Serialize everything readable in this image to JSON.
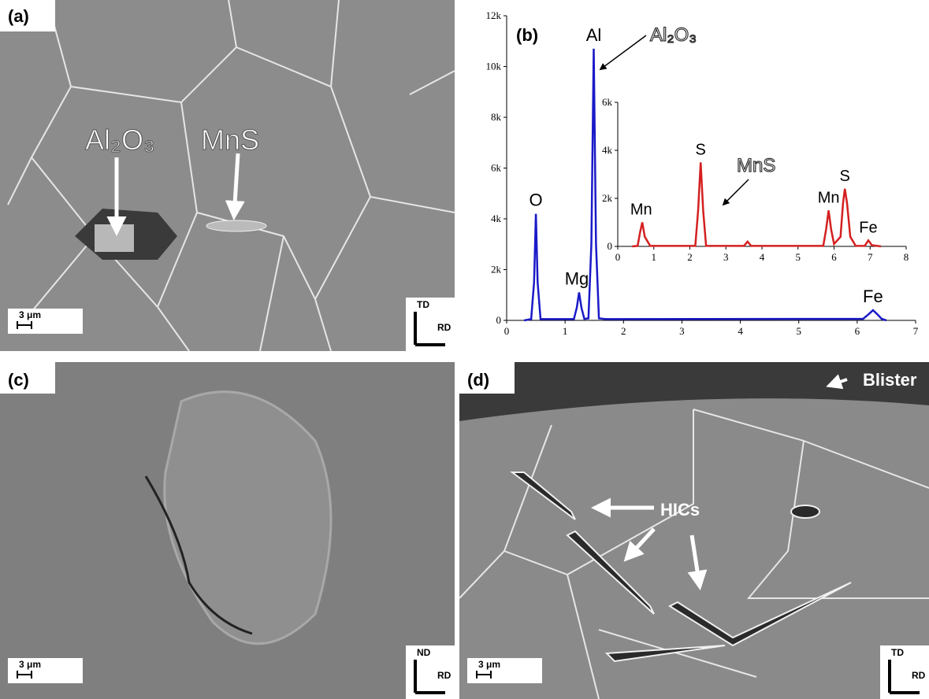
{
  "panels": {
    "a": {
      "label": "(a)",
      "callouts": [
        "Al₂O₃",
        "MnS"
      ],
      "scale": "3 μm",
      "axis_up": "TD",
      "axis_right": "RD"
    },
    "c": {
      "label": "(c)",
      "scale": "3 μm",
      "axis_up": "ND",
      "axis_right": "RD"
    },
    "d": {
      "label": "(d)",
      "callouts": [
        "Blister",
        "HICs"
      ],
      "scale": "3 μm",
      "axis_up": "TD",
      "axis_right": "RD"
    }
  },
  "chart_data": [
    {
      "type": "line",
      "label": "(b)",
      "annotations": [
        "Al₂O₃",
        "MnS"
      ],
      "xlim": [
        0,
        7
      ],
      "xticks": [
        0,
        1,
        2,
        3,
        4,
        5,
        6,
        7
      ],
      "ylim": [
        0,
        12000
      ],
      "yticks": [
        {
          "value": 0,
          "label": "0"
        },
        {
          "value": 2000,
          "label": "2k"
        },
        {
          "value": 4000,
          "label": "4k"
        },
        {
          "value": 6000,
          "label": "6k"
        },
        {
          "value": 8000,
          "label": "8k"
        },
        {
          "value": 10000,
          "label": "10k"
        },
        {
          "value": 12000,
          "label": "12k"
        }
      ],
      "series": [
        {
          "color": "#1a1ac8",
          "x": [
            0.3,
            0.42,
            0.47,
            0.5,
            0.53,
            0.58,
            0.7,
            1.15,
            1.2,
            1.24,
            1.28,
            1.33,
            1.4,
            1.45,
            1.49,
            1.53,
            1.58,
            1.7,
            6.1,
            6.2,
            6.27,
            6.34,
            6.42,
            6.5
          ],
          "values": [
            0,
            50,
            1500,
            4200,
            1500,
            50,
            50,
            50,
            500,
            1100,
            500,
            60,
            80,
            3000,
            10700,
            3000,
            80,
            50,
            60,
            250,
            400,
            250,
            60,
            0
          ]
        }
      ],
      "peak_labels": [
        {
          "text": "O",
          "x": 0.5
        },
        {
          "text": "Mg",
          "x": 1.2
        },
        {
          "text": "Al",
          "x": 1.49
        },
        {
          "text": "Fe",
          "x": 6.27
        }
      ]
    },
    {
      "type": "line",
      "xlim": [
        0,
        8
      ],
      "xticks": [
        0,
        1,
        2,
        3,
        4,
        5,
        6,
        7,
        8
      ],
      "ylim": [
        0,
        6000
      ],
      "yticks": [
        {
          "value": 0,
          "label": "0"
        },
        {
          "value": 2000,
          "label": "2k"
        },
        {
          "value": 4000,
          "label": "4k"
        },
        {
          "value": 6000,
          "label": "6k"
        }
      ],
      "series": [
        {
          "color": "#d42020",
          "x": [
            0.4,
            0.55,
            0.62,
            0.68,
            0.75,
            0.9,
            2.15,
            2.23,
            2.3,
            2.37,
            2.45,
            2.6,
            3.5,
            3.6,
            3.7,
            3.9,
            5.7,
            5.78,
            5.85,
            5.92,
            6.0,
            6.18,
            6.25,
            6.3,
            6.36,
            6.45,
            6.6,
            6.85,
            6.95,
            7.05,
            7.3
          ],
          "values": [
            0,
            20,
            600,
            1000,
            400,
            20,
            20,
            1500,
            3500,
            1500,
            20,
            20,
            20,
            200,
            20,
            20,
            20,
            700,
            1500,
            700,
            100,
            400,
            1800,
            2400,
            1800,
            400,
            20,
            20,
            250,
            50,
            0
          ]
        }
      ],
      "peak_labels": [
        {
          "text": "Mn",
          "x": 0.65
        },
        {
          "text": "S",
          "x": 2.3
        },
        {
          "text": "Mn",
          "x": 5.85
        },
        {
          "text": "S",
          "x": 6.3
        },
        {
          "text": "Fe",
          "x": 6.95
        }
      ]
    }
  ]
}
